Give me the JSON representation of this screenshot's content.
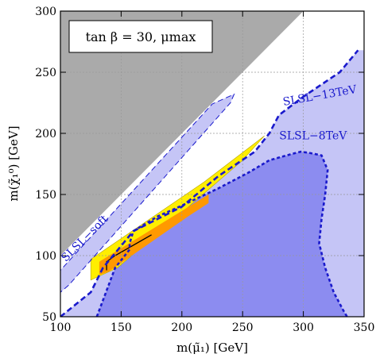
{
  "chart_data": {
    "type": "area",
    "title": "",
    "xlabel": "m(μ̃₁) [GeV]",
    "ylabel": "m(χ̃₁⁰) [GeV]",
    "xlim": [
      100,
      350
    ],
    "ylim": [
      50,
      300
    ],
    "xticks": [
      100,
      150,
      200,
      250,
      300,
      350
    ],
    "yticks": [
      50,
      100,
      150,
      200,
      250,
      300
    ],
    "grid": true,
    "legend": {
      "text": "tan β = 30, μmax",
      "placement": "top-left"
    },
    "colors": {
      "excluded_lsp": "#aaaaaa",
      "slsl_13tev": "#c5c5f6",
      "slsl_8tev": "#8c8cf0",
      "slsl_soft": "#c5c5f6",
      "contour_boundary": "#1a1acc",
      "allowed_outer": "#ffee00",
      "allowed_inner": "#ff9900"
    },
    "series": [
      {
        "name": "",
        "type": "area",
        "x": [
          100,
          300,
          100
        ],
        "y": [
          100,
          300,
          300
        ]
      },
      {
        "name": "SLSL−13TeV",
        "type": "area",
        "x": [
          100,
          125,
          135,
          160,
          200,
          230,
          260,
          272,
          280,
          300,
          330,
          345,
          350,
          350,
          100
        ],
        "y": [
          50,
          70,
          90,
          120,
          140,
          165,
          185,
          200,
          215,
          230,
          250,
          268,
          268,
          50,
          50
        ],
        "label": "SLSL−13TeV"
      },
      {
        "name": "SLSL−8TeV",
        "type": "area",
        "x": [
          130,
          145,
          157,
          157,
          160,
          180,
          198,
          230,
          255,
          272,
          290,
          298,
          305,
          315,
          320,
          318,
          315,
          313,
          318,
          325,
          333,
          336,
          130
        ],
        "y": [
          50,
          90,
          105,
          110,
          120,
          132,
          140,
          155,
          168,
          178,
          183,
          185,
          184,
          182,
          170,
          150,
          130,
          110,
          90,
          70,
          55,
          50,
          50
        ],
        "label": "SLSL−8TeV"
      },
      {
        "name": "SLSL−soft",
        "type": "area",
        "x": [
          100,
          100,
          225,
          243,
          240,
          107
        ],
        "y": [
          70,
          88,
          224,
          232,
          225,
          76
        ],
        "label": "SLSL−soft"
      },
      {
        "name": "",
        "type": "area",
        "x": [
          125,
          125,
          218,
          268,
          250,
          147
        ],
        "y": [
          80,
          97,
          160,
          198,
          178,
          90
        ]
      },
      {
        "name": "",
        "type": "area",
        "x": [
          132,
          132,
          222,
          222,
          205,
          140
        ],
        "y": [
          84,
          95,
          150,
          143,
          132,
          87
        ]
      },
      {
        "name": "",
        "type": "line",
        "x": [
          138,
          138,
          145,
          175
        ],
        "y": [
          88,
          95,
          100,
          117
        ]
      }
    ]
  }
}
